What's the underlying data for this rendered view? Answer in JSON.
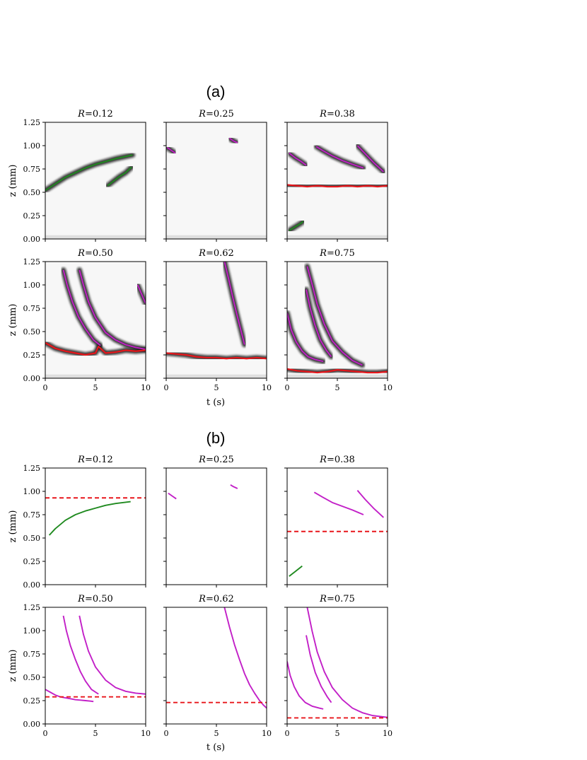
{
  "figure": {
    "sections": [
      {
        "label": "(a)",
        "kind": "kymograph"
      },
      {
        "label": "(b)",
        "kind": "fit"
      }
    ],
    "xlabel": "t (s)",
    "ylabel": "z (mm)",
    "xlim": [
      0,
      10
    ],
    "ylim": [
      0,
      1.25
    ],
    "xticks": [
      "0",
      "5",
      "10"
    ],
    "yticks": [
      "0.00",
      "0.25",
      "0.50",
      "0.75",
      "1.00",
      "1.25"
    ],
    "colors": {
      "green": "#1f8a1f",
      "magenta": "#c21fc7",
      "red": "#e8161b",
      "black": "#111111"
    }
  },
  "chart_data": [
    {
      "section": "(a)",
      "type": "line",
      "title": "R=0.12",
      "R": "0.12",
      "series": [
        {
          "color": "green",
          "style": "solid",
          "x": [
            0,
            1,
            2,
            3,
            4,
            5,
            6,
            7,
            8.7
          ],
          "y": [
            0.52,
            0.59,
            0.66,
            0.71,
            0.76,
            0.8,
            0.83,
            0.86,
            0.9
          ]
        },
        {
          "color": "green",
          "style": "solid",
          "x": [
            6.2,
            6.8,
            7.4,
            8.0,
            8.6
          ],
          "y": [
            0.57,
            0.62,
            0.67,
            0.71,
            0.77
          ]
        }
      ]
    },
    {
      "section": "(a)",
      "type": "line",
      "title": "R=0.25",
      "R": "0.25",
      "series": [
        {
          "color": "magenta",
          "style": "solid",
          "x": [
            0.1,
            0.5,
            0.9
          ],
          "y": [
            0.98,
            0.95,
            0.92
          ]
        },
        {
          "color": "magenta",
          "style": "solid",
          "x": [
            6.3,
            6.7,
            7.1
          ],
          "y": [
            1.08,
            1.05,
            1.03
          ]
        }
      ]
    },
    {
      "section": "(a)",
      "type": "line",
      "title": "R=0.38",
      "R": "0.38",
      "series": [
        {
          "color": "magenta",
          "style": "solid",
          "x": [
            0.2,
            0.8,
            1.4,
            1.9
          ],
          "y": [
            0.92,
            0.87,
            0.83,
            0.79
          ]
        },
        {
          "color": "magenta",
          "style": "solid",
          "x": [
            2.9,
            3.5,
            4.5,
            5.5,
            6.5,
            7.6
          ],
          "y": [
            0.99,
            0.95,
            0.89,
            0.84,
            0.8,
            0.76
          ]
        },
        {
          "color": "magenta",
          "style": "solid",
          "x": [
            7.0,
            7.8,
            8.6,
            9.6
          ],
          "y": [
            1.0,
            0.91,
            0.82,
            0.72
          ]
        },
        {
          "color": "green",
          "style": "solid",
          "x": [
            0.2,
            0.8,
            1.4,
            1.6
          ],
          "y": [
            0.09,
            0.13,
            0.17,
            0.19
          ]
        },
        {
          "color": "red",
          "style": "solid",
          "x": [
            0,
            1,
            2,
            3,
            4,
            5,
            6,
            7,
            8,
            9,
            10
          ],
          "y": [
            0.58,
            0.57,
            0.56,
            0.57,
            0.56,
            0.56,
            0.57,
            0.56,
            0.57,
            0.56,
            0.57
          ]
        }
      ]
    },
    {
      "section": "(a)",
      "type": "line",
      "title": "R=0.50",
      "R": "0.50",
      "series": [
        {
          "color": "magenta",
          "style": "solid",
          "x": [
            1.8,
            2.2,
            2.7,
            3.3,
            4.0,
            4.8,
            5.5
          ],
          "y": [
            1.16,
            0.99,
            0.82,
            0.66,
            0.53,
            0.41,
            0.35
          ]
        },
        {
          "color": "magenta",
          "style": "solid",
          "x": [
            3.4,
            3.8,
            4.3,
            5.0,
            6.0,
            7.0,
            8.0,
            9.0,
            10.0
          ],
          "y": [
            1.16,
            1.0,
            0.82,
            0.65,
            0.49,
            0.41,
            0.36,
            0.33,
            0.31
          ]
        },
        {
          "color": "magenta",
          "style": "solid",
          "x": [
            9.2,
            9.6,
            10.0
          ],
          "y": [
            1.0,
            0.9,
            0.8
          ]
        },
        {
          "color": "red",
          "style": "solid",
          "x": [
            0,
            1,
            2,
            3,
            4,
            5,
            5.3,
            6,
            7,
            8,
            9,
            10
          ],
          "y": [
            0.38,
            0.32,
            0.29,
            0.27,
            0.25,
            0.27,
            0.34,
            0.27,
            0.28,
            0.3,
            0.29,
            0.3
          ]
        }
      ]
    },
    {
      "section": "(a)",
      "type": "line",
      "title": "R=0.62",
      "R": "0.62",
      "series": [
        {
          "color": "magenta",
          "style": "solid",
          "x": [
            5.8,
            6.2,
            6.6,
            7.0,
            7.4,
            7.8
          ],
          "y": [
            1.25,
            1.07,
            0.88,
            0.7,
            0.53,
            0.36
          ]
        },
        {
          "color": "red",
          "style": "solid",
          "x": [
            0,
            1,
            2,
            3,
            4,
            5,
            6,
            7,
            8,
            9,
            10
          ],
          "y": [
            0.27,
            0.26,
            0.25,
            0.23,
            0.22,
            0.22,
            0.21,
            0.22,
            0.21,
            0.22,
            0.21
          ]
        }
      ]
    },
    {
      "section": "(a)",
      "type": "line",
      "title": "R=0.75",
      "R": "0.75",
      "series": [
        {
          "color": "magenta",
          "style": "solid",
          "x": [
            0,
            0.4,
            0.9,
            1.5,
            2.1,
            2.8,
            3.6
          ],
          "y": [
            0.7,
            0.52,
            0.39,
            0.29,
            0.23,
            0.2,
            0.18
          ]
        },
        {
          "color": "magenta",
          "style": "solid",
          "x": [
            1.9,
            2.3,
            2.8,
            3.3,
            3.9,
            4.4
          ],
          "y": [
            0.95,
            0.75,
            0.56,
            0.41,
            0.3,
            0.23
          ]
        },
        {
          "color": "magenta",
          "style": "solid",
          "x": [
            2.0,
            2.5,
            3.0,
            3.7,
            4.5,
            5.5,
            6.5,
            7.5
          ],
          "y": [
            1.2,
            1.0,
            0.79,
            0.58,
            0.4,
            0.28,
            0.19,
            0.14
          ]
        },
        {
          "color": "red",
          "style": "solid",
          "x": [
            0,
            1,
            2,
            3,
            4,
            5,
            6,
            7,
            8,
            9,
            10
          ],
          "y": [
            0.1,
            0.08,
            0.07,
            0.06,
            0.07,
            0.09,
            0.08,
            0.07,
            0.06,
            0.06,
            0.07
          ]
        }
      ]
    },
    {
      "section": "(b)",
      "type": "line",
      "title": "R=0.12",
      "R": "0.12",
      "series": [
        {
          "color": "green",
          "style": "solid",
          "x": [
            0.4,
            1,
            2,
            3,
            4,
            5,
            6,
            7,
            8.5
          ],
          "y": [
            0.53,
            0.6,
            0.69,
            0.75,
            0.79,
            0.82,
            0.85,
            0.87,
            0.89
          ]
        },
        {
          "color": "red",
          "style": "dashed",
          "x": [
            0,
            10
          ],
          "y": [
            0.93,
            0.93
          ]
        }
      ]
    },
    {
      "section": "(b)",
      "type": "line",
      "title": "R=0.25",
      "R": "0.25",
      "series": [
        {
          "color": "magenta",
          "style": "solid",
          "x": [
            0.2,
            0.6,
            1.0
          ],
          "y": [
            0.98,
            0.95,
            0.92
          ]
        },
        {
          "color": "magenta",
          "style": "solid",
          "x": [
            6.4,
            6.7,
            7.1
          ],
          "y": [
            1.07,
            1.05,
            1.03
          ]
        }
      ]
    },
    {
      "section": "(b)",
      "type": "line",
      "title": "R=0.38",
      "R": "0.38",
      "series": [
        {
          "color": "magenta",
          "style": "solid",
          "x": [
            2.7,
            3.5,
            4.5,
            5.5,
            6.5,
            7.6
          ],
          "y": [
            0.99,
            0.94,
            0.88,
            0.84,
            0.8,
            0.75
          ]
        },
        {
          "color": "magenta",
          "style": "solid",
          "x": [
            7.0,
            7.8,
            8.6,
            9.6
          ],
          "y": [
            1.01,
            0.91,
            0.82,
            0.72
          ]
        },
        {
          "color": "green",
          "style": "solid",
          "x": [
            0.2,
            0.8,
            1.5
          ],
          "y": [
            0.09,
            0.14,
            0.2
          ]
        },
        {
          "color": "red",
          "style": "dashed",
          "x": [
            0,
            10
          ],
          "y": [
            0.57,
            0.57
          ]
        }
      ]
    },
    {
      "section": "(b)",
      "type": "line",
      "title": "R=0.50",
      "R": "0.50",
      "series": [
        {
          "color": "magenta",
          "style": "solid",
          "x": [
            0,
            0.5,
            1,
            1.5,
            2,
            2.5,
            3,
            3.5,
            4,
            4.5,
            4.8
          ],
          "y": [
            0.37,
            0.34,
            0.31,
            0.29,
            0.28,
            0.27,
            0.26,
            0.255,
            0.25,
            0.245,
            0.24
          ]
        },
        {
          "color": "magenta",
          "style": "solid",
          "x": [
            1.8,
            2.1,
            2.5,
            3.0,
            3.5,
            4.0,
            4.6,
            5.3
          ],
          "y": [
            1.16,
            1.0,
            0.84,
            0.69,
            0.56,
            0.46,
            0.37,
            0.32
          ]
        },
        {
          "color": "magenta",
          "style": "solid",
          "x": [
            3.4,
            3.8,
            4.3,
            5.0,
            6.0,
            7.0,
            8.0,
            9.0,
            10.0
          ],
          "y": [
            1.16,
            0.96,
            0.78,
            0.61,
            0.47,
            0.39,
            0.35,
            0.33,
            0.32
          ]
        },
        {
          "color": "red",
          "style": "dashed",
          "x": [
            0,
            10
          ],
          "y": [
            0.29,
            0.29
          ]
        }
      ]
    },
    {
      "section": "(b)",
      "type": "line",
      "title": "R=0.62",
      "R": "0.62",
      "series": [
        {
          "color": "magenta",
          "style": "solid",
          "x": [
            5.8,
            6.3,
            6.8,
            7.3,
            7.8,
            8.3,
            8.8,
            9.3,
            9.7,
            10.0
          ],
          "y": [
            1.25,
            1.04,
            0.85,
            0.69,
            0.54,
            0.42,
            0.33,
            0.25,
            0.2,
            0.17
          ]
        },
        {
          "color": "red",
          "style": "dashed",
          "x": [
            0,
            10
          ],
          "y": [
            0.23,
            0.23
          ]
        }
      ]
    },
    {
      "section": "(b)",
      "type": "line",
      "title": "R=0.75",
      "R": "0.75",
      "series": [
        {
          "color": "magenta",
          "style": "solid",
          "x": [
            0,
            0.3,
            0.7,
            1.2,
            1.8,
            2.5,
            3.2,
            3.6
          ],
          "y": [
            0.67,
            0.52,
            0.4,
            0.3,
            0.23,
            0.19,
            0.17,
            0.16
          ]
        },
        {
          "color": "magenta",
          "style": "solid",
          "x": [
            1.9,
            2.3,
            2.8,
            3.4,
            4.0,
            4.4
          ],
          "y": [
            0.95,
            0.74,
            0.55,
            0.4,
            0.29,
            0.23
          ]
        },
        {
          "color": "magenta",
          "style": "solid",
          "x": [
            2.0,
            2.5,
            3.0,
            3.7,
            4.5,
            5.5,
            6.5,
            7.5,
            8.5,
            10.0
          ],
          "y": [
            1.25,
            0.99,
            0.77,
            0.56,
            0.39,
            0.26,
            0.17,
            0.12,
            0.09,
            0.07
          ]
        },
        {
          "color": "red",
          "style": "dashed",
          "x": [
            0,
            10
          ],
          "y": [
            0.065,
            0.065
          ]
        }
      ]
    }
  ]
}
